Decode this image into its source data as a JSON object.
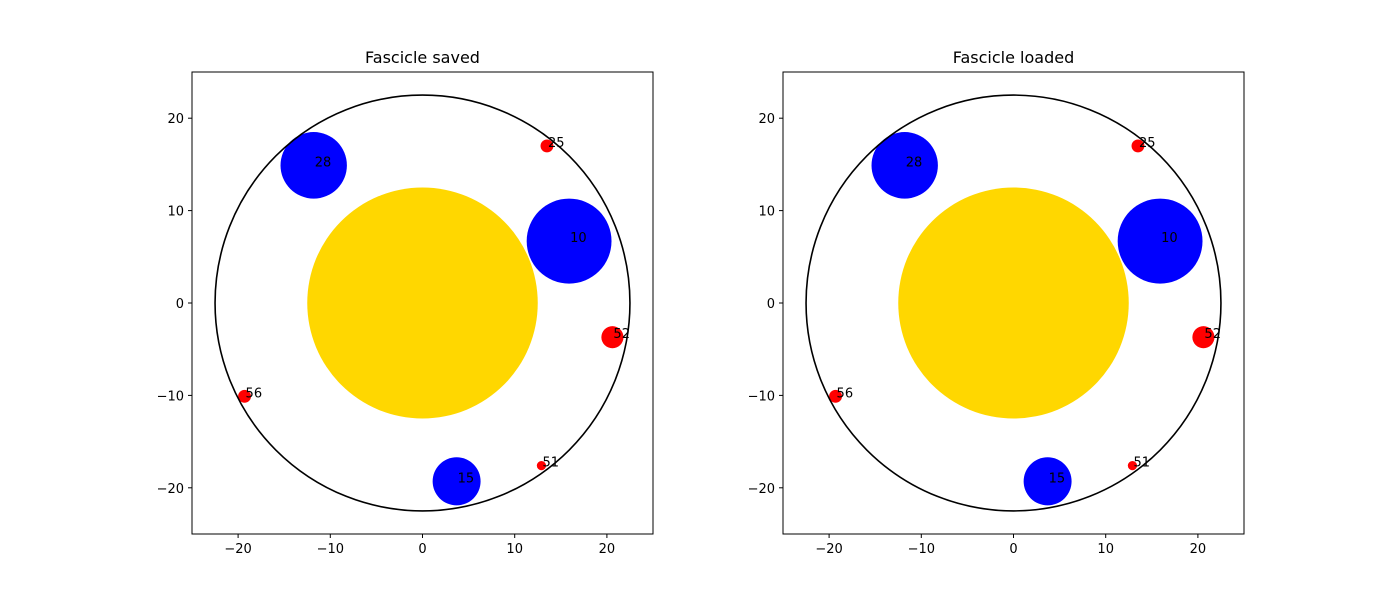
{
  "chart_data": [
    {
      "type": "scatter",
      "title": "Fascicle saved",
      "xlim": [
        -25,
        25
      ],
      "ylim": [
        -25,
        25
      ],
      "xticks": [
        -20,
        -10,
        0,
        10,
        20
      ],
      "yticks": [
        -20,
        -10,
        0,
        10,
        20
      ],
      "xticklabels": [
        "−20",
        "−10",
        "0",
        "10",
        "20"
      ],
      "yticklabels": [
        "−20",
        "−10",
        "0",
        "10",
        "20"
      ],
      "outer_circle": {
        "cx": 0,
        "cy": 0,
        "r": 22.5,
        "color": "#000000"
      },
      "fascicle": {
        "cx": 0,
        "cy": 0,
        "r": 12.5,
        "color": "#FFD700"
      },
      "points": [
        {
          "label": "28",
          "x": -11.8,
          "y": 14.9,
          "r": 3.6,
          "color": "#0000FF"
        },
        {
          "label": "10",
          "x": 15.9,
          "y": 6.7,
          "r": 4.6,
          "color": "#0000FF"
        },
        {
          "label": "15",
          "x": 3.7,
          "y": -19.3,
          "r": 2.6,
          "color": "#0000FF"
        },
        {
          "label": "25",
          "x": 13.5,
          "y": 17.0,
          "r": 0.7,
          "color": "#FF0000"
        },
        {
          "label": "52",
          "x": 20.6,
          "y": -3.7,
          "r": 1.2,
          "color": "#FF0000"
        },
        {
          "label": "56",
          "x": -19.3,
          "y": -10.1,
          "r": 0.7,
          "color": "#FF0000"
        },
        {
          "label": "51",
          "x": 12.9,
          "y": -17.6,
          "r": 0.5,
          "color": "#FF0000"
        }
      ]
    },
    {
      "type": "scatter",
      "title": "Fascicle loaded",
      "xlim": [
        -25,
        25
      ],
      "ylim": [
        -25,
        25
      ],
      "xticks": [
        -20,
        -10,
        0,
        10,
        20
      ],
      "yticks": [
        -20,
        -10,
        0,
        10,
        20
      ],
      "xticklabels": [
        "−20",
        "−10",
        "0",
        "10",
        "20"
      ],
      "yticklabels": [
        "−20",
        "−10",
        "0",
        "10",
        "20"
      ],
      "outer_circle": {
        "cx": 0,
        "cy": 0,
        "r": 22.5,
        "color": "#000000"
      },
      "fascicle": {
        "cx": 0,
        "cy": 0,
        "r": 12.5,
        "color": "#FFD700"
      },
      "points": [
        {
          "label": "28",
          "x": -11.8,
          "y": 14.9,
          "r": 3.6,
          "color": "#0000FF"
        },
        {
          "label": "10",
          "x": 15.9,
          "y": 6.7,
          "r": 4.6,
          "color": "#0000FF"
        },
        {
          "label": "15",
          "x": 3.7,
          "y": -19.3,
          "r": 2.6,
          "color": "#0000FF"
        },
        {
          "label": "25",
          "x": 13.5,
          "y": 17.0,
          "r": 0.7,
          "color": "#FF0000"
        },
        {
          "label": "52",
          "x": 20.6,
          "y": -3.7,
          "r": 1.2,
          "color": "#FF0000"
        },
        {
          "label": "56",
          "x": -19.3,
          "y": -10.1,
          "r": 0.7,
          "color": "#FF0000"
        },
        {
          "label": "51",
          "x": 12.9,
          "y": -17.6,
          "r": 0.5,
          "color": "#FF0000"
        }
      ]
    }
  ]
}
